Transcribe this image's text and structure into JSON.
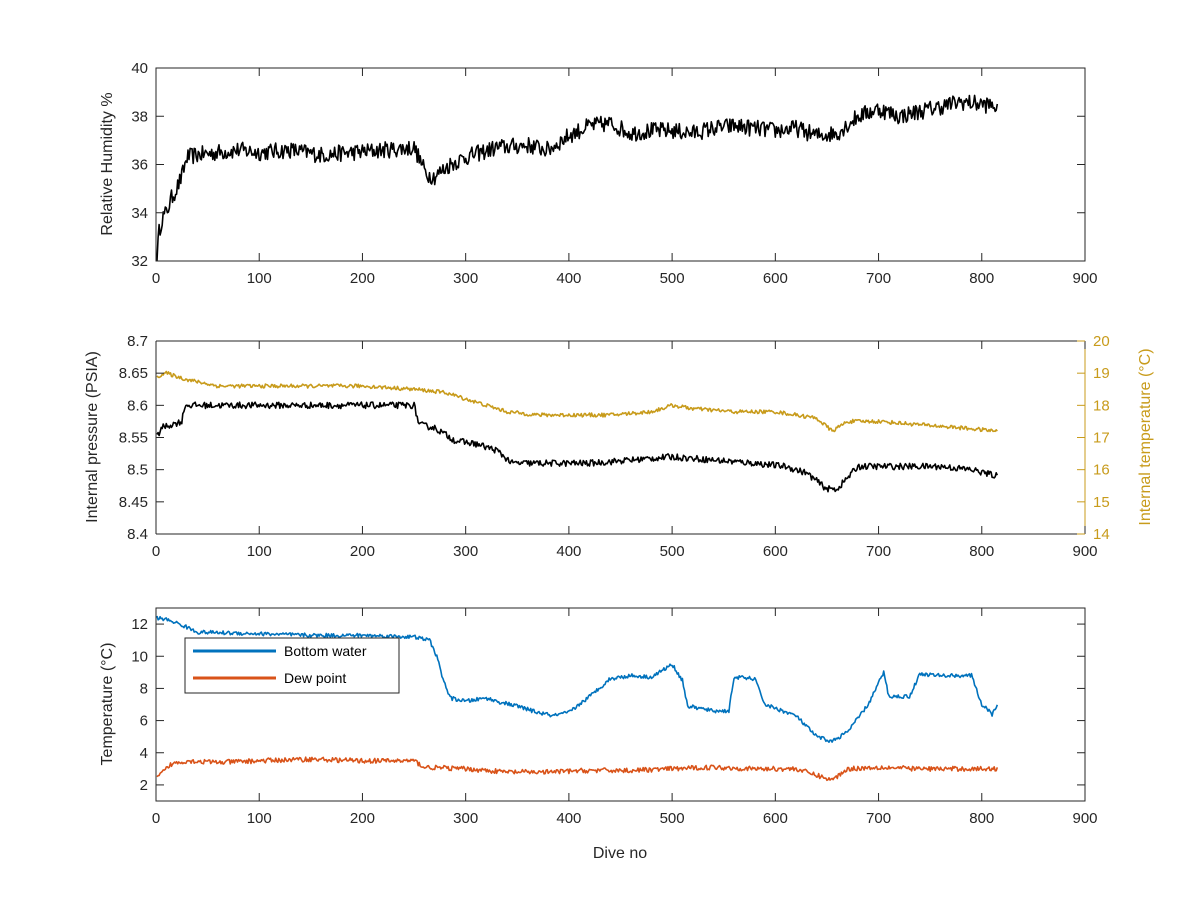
{
  "chart_data": [
    {
      "type": "line",
      "ylabel": "Relative Humidity %",
      "xlim": [
        0,
        900
      ],
      "ylim": [
        32,
        40
      ],
      "xticks": [
        0,
        100,
        200,
        300,
        400,
        500,
        600,
        700,
        800,
        900
      ],
      "yticks": [
        32,
        34,
        36,
        38,
        40
      ],
      "grid": false,
      "series": [
        {
          "color": "#000000",
          "noise": 0.35,
          "points": [
            [
              1,
              32.3
            ],
            [
              3,
              33.2
            ],
            [
              6,
              33.8
            ],
            [
              10,
              34.0
            ],
            [
              15,
              34.6
            ],
            [
              20,
              35.0
            ],
            [
              25,
              35.5
            ],
            [
              30,
              36.3
            ],
            [
              40,
              36.4
            ],
            [
              60,
              36.5
            ],
            [
              80,
              36.6
            ],
            [
              100,
              36.5
            ],
            [
              130,
              36.6
            ],
            [
              160,
              36.4
            ],
            [
              190,
              36.5
            ],
            [
              220,
              36.6
            ],
            [
              250,
              36.7
            ],
            [
              262,
              35.6
            ],
            [
              270,
              35.5
            ],
            [
              285,
              36.0
            ],
            [
              300,
              36.3
            ],
            [
              330,
              36.7
            ],
            [
              360,
              36.8
            ],
            [
              380,
              36.6
            ],
            [
              400,
              37.2
            ],
            [
              420,
              37.6
            ],
            [
              440,
              37.7
            ],
            [
              460,
              37.3
            ],
            [
              480,
              37.4
            ],
            [
              500,
              37.4
            ],
            [
              520,
              37.3
            ],
            [
              540,
              37.5
            ],
            [
              560,
              37.6
            ],
            [
              580,
              37.5
            ],
            [
              600,
              37.4
            ],
            [
              620,
              37.5
            ],
            [
              640,
              37.2
            ],
            [
              660,
              37.3
            ],
            [
              680,
              38.0
            ],
            [
              700,
              38.3
            ],
            [
              720,
              38.0
            ],
            [
              740,
              38.2
            ],
            [
              760,
              38.4
            ],
            [
              780,
              38.6
            ],
            [
              800,
              38.5
            ],
            [
              815,
              38.4
            ]
          ]
        }
      ]
    },
    {
      "type": "line",
      "ylabel": "Internal pressure (PSIA)",
      "y2label": "Internal temperature (°C)",
      "xlim": [
        0,
        900
      ],
      "ylim": [
        8.4,
        8.7
      ],
      "y2lim": [
        14,
        20
      ],
      "xticks": [
        0,
        100,
        200,
        300,
        400,
        500,
        600,
        700,
        800,
        900
      ],
      "yticks": [
        8.4,
        8.45,
        8.5,
        8.55,
        8.6,
        8.65,
        8.7
      ],
      "ytick_labels": [
        "8.4",
        "8.45",
        "8.5",
        "8.55",
        "8.6",
        "8.65",
        "8.7"
      ],
      "y2ticks": [
        14,
        15,
        16,
        17,
        18,
        19,
        20
      ],
      "grid": false,
      "series": [
        {
          "axis": "left",
          "color": "#000000",
          "noise": 0.005,
          "points": [
            [
              1,
              8.55
            ],
            [
              5,
              8.565
            ],
            [
              15,
              8.57
            ],
            [
              25,
              8.575
            ],
            [
              28,
              8.6
            ],
            [
              60,
              8.6
            ],
            [
              100,
              8.6
            ],
            [
              150,
              8.6
            ],
            [
              200,
              8.6
            ],
            [
              250,
              8.6
            ],
            [
              255,
              8.57
            ],
            [
              270,
              8.565
            ],
            [
              290,
              8.545
            ],
            [
              310,
              8.54
            ],
            [
              330,
              8.53
            ],
            [
              345,
              8.51
            ],
            [
              380,
              8.51
            ],
            [
              420,
              8.51
            ],
            [
              460,
              8.515
            ],
            [
              500,
              8.52
            ],
            [
              540,
              8.515
            ],
            [
              580,
              8.51
            ],
            [
              610,
              8.505
            ],
            [
              630,
              8.495
            ],
            [
              650,
              8.47
            ],
            [
              660,
              8.47
            ],
            [
              680,
              8.505
            ],
            [
              720,
              8.505
            ],
            [
              760,
              8.505
            ],
            [
              790,
              8.5
            ],
            [
              815,
              8.49
            ]
          ]
        },
        {
          "axis": "right",
          "color": "#c89b1b",
          "noise": 0.06,
          "points": [
            [
              1,
              18.9
            ],
            [
              10,
              19.0
            ],
            [
              30,
              18.8
            ],
            [
              60,
              18.6
            ],
            [
              100,
              18.6
            ],
            [
              150,
              18.6
            ],
            [
              200,
              18.6
            ],
            [
              250,
              18.5
            ],
            [
              280,
              18.4
            ],
            [
              300,
              18.2
            ],
            [
              320,
              18.0
            ],
            [
              340,
              17.8
            ],
            [
              370,
              17.7
            ],
            [
              400,
              17.7
            ],
            [
              440,
              17.7
            ],
            [
              480,
              17.8
            ],
            [
              500,
              18.0
            ],
            [
              520,
              17.9
            ],
            [
              560,
              17.8
            ],
            [
              600,
              17.8
            ],
            [
              640,
              17.6
            ],
            [
              655,
              17.2
            ],
            [
              670,
              17.5
            ],
            [
              700,
              17.5
            ],
            [
              740,
              17.4
            ],
            [
              780,
              17.3
            ],
            [
              815,
              17.2
            ]
          ]
        }
      ]
    },
    {
      "type": "line",
      "ylabel": "Temperature (°C)",
      "xlabel": "Dive no",
      "xlim": [
        0,
        900
      ],
      "ylim": [
        1,
        13
      ],
      "xticks": [
        0,
        100,
        200,
        300,
        400,
        500,
        600,
        700,
        800,
        900
      ],
      "yticks": [
        2,
        4,
        6,
        8,
        10,
        12
      ],
      "grid": false,
      "legend": "top-left",
      "series": [
        {
          "name": "Bottom water",
          "color": "#0072bd",
          "noise": 0.12,
          "points": [
            [
              1,
              12.4
            ],
            [
              15,
              12.2
            ],
            [
              30,
              11.8
            ],
            [
              40,
              11.5
            ],
            [
              100,
              11.4
            ],
            [
              150,
              11.3
            ],
            [
              200,
              11.3
            ],
            [
              250,
              11.2
            ],
            [
              265,
              11.0
            ],
            [
              272,
              10.0
            ],
            [
              278,
              8.6
            ],
            [
              285,
              7.4
            ],
            [
              300,
              7.2
            ],
            [
              320,
              7.4
            ],
            [
              330,
              7.2
            ],
            [
              350,
              6.9
            ],
            [
              370,
              6.5
            ],
            [
              385,
              6.3
            ],
            [
              400,
              6.5
            ],
            [
              420,
              7.5
            ],
            [
              440,
              8.6
            ],
            [
              460,
              8.8
            ],
            [
              480,
              8.7
            ],
            [
              500,
              9.5
            ],
            [
              510,
              8.5
            ],
            [
              515,
              6.9
            ],
            [
              540,
              6.6
            ],
            [
              555,
              6.6
            ],
            [
              560,
              8.7
            ],
            [
              580,
              8.6
            ],
            [
              590,
              7.0
            ],
            [
              620,
              6.3
            ],
            [
              640,
              5.0
            ],
            [
              655,
              4.7
            ],
            [
              670,
              5.3
            ],
            [
              690,
              7.0
            ],
            [
              705,
              9.0
            ],
            [
              710,
              7.5
            ],
            [
              730,
              7.5
            ],
            [
              740,
              8.9
            ],
            [
              760,
              8.8
            ],
            [
              790,
              8.8
            ],
            [
              800,
              7.0
            ],
            [
              810,
              6.4
            ],
            [
              815,
              6.9
            ]
          ]
        },
        {
          "name": "Dew point",
          "color": "#d95319",
          "noise": 0.15,
          "points": [
            [
              1,
              2.4
            ],
            [
              5,
              2.7
            ],
            [
              15,
              3.3
            ],
            [
              30,
              3.5
            ],
            [
              60,
              3.4
            ],
            [
              100,
              3.5
            ],
            [
              150,
              3.6
            ],
            [
              200,
              3.5
            ],
            [
              250,
              3.5
            ],
            [
              260,
              3.1
            ],
            [
              300,
              3.0
            ],
            [
              340,
              2.8
            ],
            [
              380,
              2.8
            ],
            [
              420,
              2.9
            ],
            [
              460,
              2.9
            ],
            [
              500,
              3.0
            ],
            [
              540,
              3.1
            ],
            [
              580,
              3.0
            ],
            [
              620,
              3.0
            ],
            [
              640,
              2.6
            ],
            [
              655,
              2.3
            ],
            [
              670,
              3.0
            ],
            [
              700,
              3.1
            ],
            [
              740,
              3.0
            ],
            [
              780,
              3.0
            ],
            [
              815,
              3.0
            ]
          ]
        }
      ]
    }
  ]
}
